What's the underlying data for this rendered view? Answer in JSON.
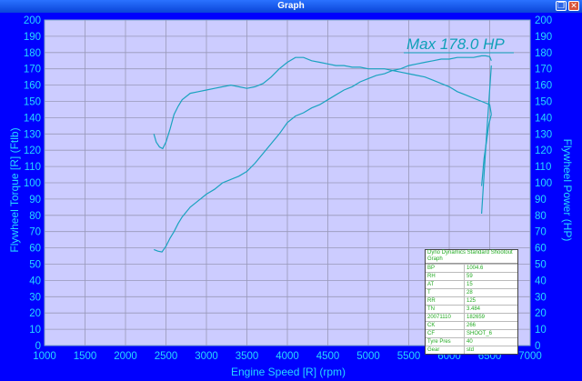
{
  "window": {
    "title": "Graph"
  },
  "chart_data": {
    "type": "line",
    "xlabel": "Engine Speed [R] (rpm)",
    "ylabel_left": "Flywheel Torque [R] (Ftlb)",
    "ylabel_right": "Flywheel Power (HP)",
    "xlim": [
      1000,
      7000
    ],
    "ylim": [
      0,
      200
    ],
    "x_ticks": [
      1000,
      1500,
      2000,
      2500,
      3000,
      3500,
      4000,
      4500,
      5000,
      5500,
      6000,
      6500,
      7000
    ],
    "y_ticks": [
      0,
      10,
      20,
      30,
      40,
      50,
      60,
      70,
      80,
      90,
      100,
      110,
      120,
      130,
      140,
      150,
      160,
      170,
      180,
      190,
      200
    ],
    "grid": true,
    "plot_background": "#ccccff",
    "frame_color": "#0000ff",
    "line_color": "#1aa3bf",
    "annotation": "Max 178.0 HP",
    "series": [
      {
        "x": [
          2350,
          2380,
          2420,
          2460,
          2500,
          2550,
          2600,
          2650,
          2700,
          2800,
          2900,
          3000,
          3100,
          3200,
          3300,
          3400,
          3500,
          3600,
          3700,
          3800,
          3900,
          4000,
          4100,
          4200,
          4300,
          4400,
          4500,
          4600,
          4700,
          4800,
          4900,
          5000,
          5100,
          5200,
          5300,
          5400,
          5500,
          5600,
          5700,
          5800,
          5900,
          6000,
          6100,
          6200,
          6300,
          6400,
          6500,
          6520
        ],
        "y": [
          130,
          125,
          122,
          121,
          125,
          133,
          142,
          147,
          151,
          155,
          156,
          157,
          158,
          159,
          160,
          159,
          158,
          159,
          161,
          165,
          170,
          174,
          177,
          177,
          175,
          174,
          173,
          172,
          172,
          171,
          171,
          170,
          170,
          170,
          169,
          168,
          167,
          166,
          165,
          163,
          161,
          159,
          156,
          154,
          152,
          150,
          148,
          142
        ]
      },
      {
        "x": [
          2350,
          2400,
          2450,
          2500,
          2550,
          2600,
          2650,
          2700,
          2800,
          2900,
          3000,
          3100,
          3200,
          3300,
          3400,
          3500,
          3600,
          3700,
          3800,
          3900,
          4000,
          4100,
          4200,
          4300,
          4400,
          4500,
          4600,
          4700,
          4800,
          4900,
          5000,
          5100,
          5200,
          5300,
          5400,
          5500,
          5600,
          5700,
          5800,
          5900,
          6000,
          6100,
          6200,
          6300,
          6400,
          6450,
          6500,
          6520
        ],
        "y": [
          59,
          58,
          57.5,
          61,
          66,
          70,
          75,
          79,
          85,
          89,
          93,
          96,
          100,
          102,
          104,
          107,
          112,
          118,
          124,
          130,
          137,
          141,
          143,
          146,
          148,
          151,
          154,
          157,
          159,
          162,
          164,
          166,
          167,
          169,
          170,
          172,
          173,
          174,
          175,
          176,
          176,
          177,
          177,
          177,
          178,
          178,
          177.5,
          175
        ]
      },
      {
        "x": [
          6400,
          6430,
          6460,
          6490,
          6520
        ],
        "y": [
          81,
          105,
          128,
          150,
          172
        ]
      },
      {
        "x": [
          6400,
          6430,
          6460,
          6490,
          6520
        ],
        "y": [
          98,
          115,
          125,
          136,
          142
        ]
      }
    ]
  },
  "info_table": {
    "title": "Dyno Dynamics Standard Shootout Graph",
    "rows": [
      {
        "k": "BP",
        "v": "1004.6"
      },
      {
        "k": "RH",
        "v": "59"
      },
      {
        "k": "AT",
        "v": "15"
      },
      {
        "k": "T",
        "v": "28"
      },
      {
        "k": "RR",
        "v": "125"
      },
      {
        "k": "TN",
        "v": "3.484"
      },
      {
        "k": "20071110",
        "v": "182659"
      },
      {
        "k": "CK",
        "v": "266"
      },
      {
        "k": "CF",
        "v": "SHOOT_6"
      },
      {
        "k": "Tyre Pres",
        "v": "40"
      },
      {
        "k": "Gear",
        "v": "std"
      }
    ]
  }
}
